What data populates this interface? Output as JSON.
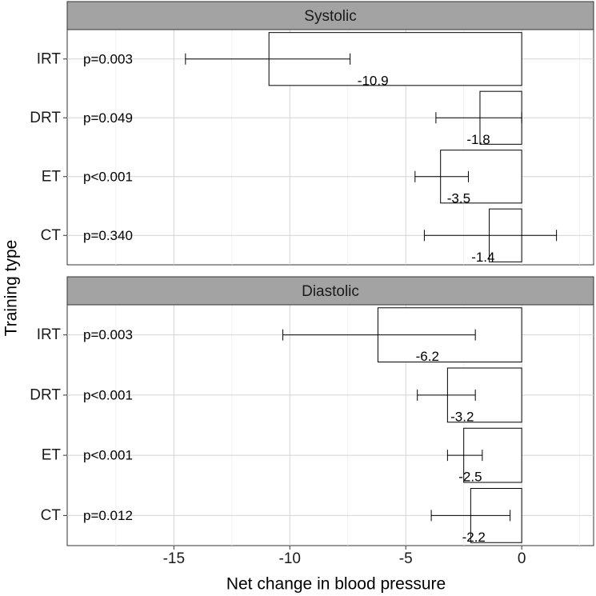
{
  "chart_data": {
    "type": "bar",
    "orientation": "horizontal",
    "xlabel": "Net change in blood pressure",
    "ylabel": "Training type",
    "xlim": [
      -19.6,
      3.1
    ],
    "xticks": [
      -15,
      -10,
      -5,
      0
    ],
    "tick_labels": [
      "-15",
      "-10",
      "-5",
      "0"
    ],
    "categories": [
      "IRT",
      "DRT",
      "ET",
      "CT"
    ],
    "panels": [
      {
        "title": "Systolic",
        "rows": [
          {
            "category": "IRT",
            "value": -10.9,
            "label": "-10.9",
            "ci_low": -14.5,
            "ci_high": -7.4,
            "p": "p=0.003"
          },
          {
            "category": "DRT",
            "value": -1.8,
            "label": "-1.8",
            "ci_low": -3.7,
            "ci_high": 0.0,
            "p": "p=0.049"
          },
          {
            "category": "ET",
            "value": -3.5,
            "label": "-3.5",
            "ci_low": -4.6,
            "ci_high": -2.3,
            "p": "p<0.001"
          },
          {
            "category": "CT",
            "value": -1.4,
            "label": "-1.4",
            "ci_low": -4.2,
            "ci_high": 1.5,
            "p": "p=0.340"
          }
        ]
      },
      {
        "title": "Diastolic",
        "rows": [
          {
            "category": "IRT",
            "value": -6.2,
            "label": "-6.2",
            "ci_low": -10.3,
            "ci_high": -2.0,
            "p": "p=0.003"
          },
          {
            "category": "DRT",
            "value": -3.2,
            "label": "-3.2",
            "ci_low": -4.5,
            "ci_high": -2.0,
            "p": "p<0.001"
          },
          {
            "category": "ET",
            "value": -2.5,
            "label": "-2.5",
            "ci_low": -3.2,
            "ci_high": -1.7,
            "p": "p<0.001"
          },
          {
            "category": "CT",
            "value": -2.2,
            "label": "-2.2",
            "ci_low": -3.9,
            "ci_high": -0.5,
            "p": "p=0.012"
          }
        ]
      }
    ]
  }
}
